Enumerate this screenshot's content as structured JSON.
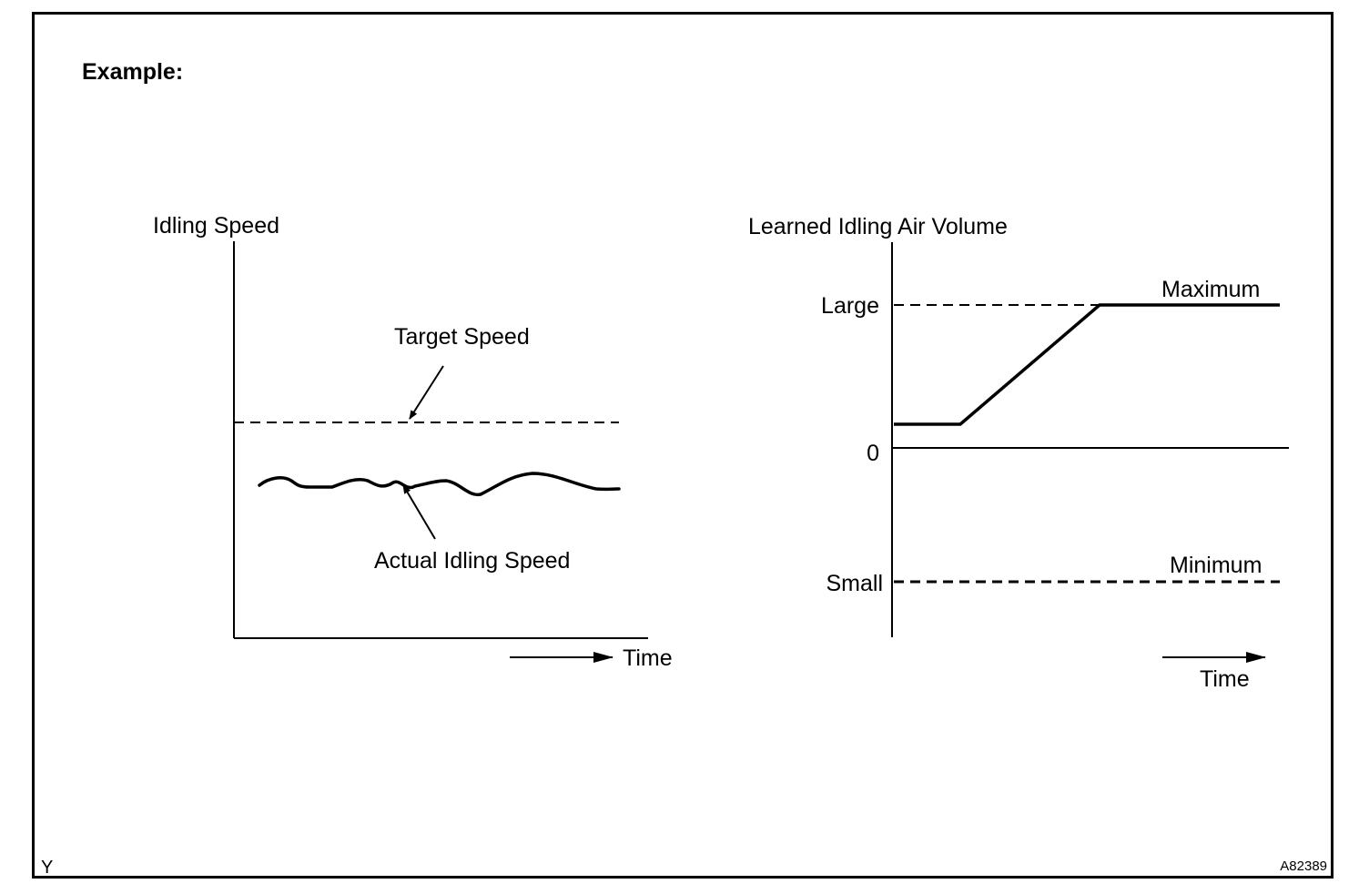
{
  "header": {
    "title": "Example:"
  },
  "left_chart": {
    "y_label": "Idling Speed",
    "target_label": "Target Speed",
    "actual_label": "Actual Idling Speed",
    "x_label": "Time"
  },
  "right_chart": {
    "y_label": "Learned Idling Air Volume",
    "tick_large": "Large",
    "tick_zero": "0",
    "tick_small": "Small",
    "max_label": "Maximum",
    "min_label": "Minimum",
    "x_label": "Time"
  },
  "footer": {
    "left_code": "Y",
    "figure_id": "A82389"
  }
}
